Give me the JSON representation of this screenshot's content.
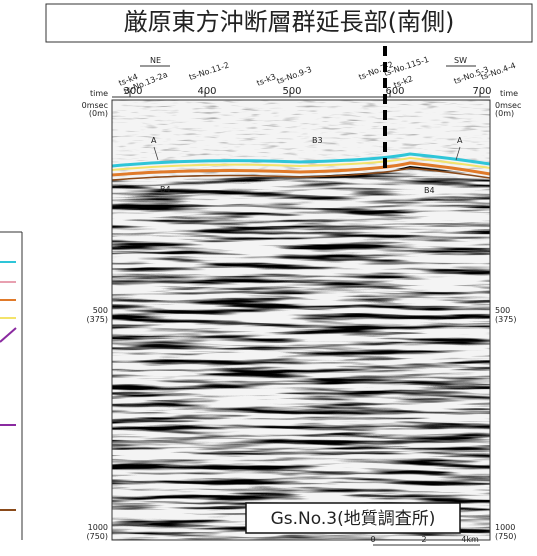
{
  "title": "厳原東方沖断層群延長部(南側)",
  "axis": {
    "time_label": "time",
    "shotpoints": [
      "300",
      "400",
      "500",
      "600",
      "700"
    ],
    "times": [
      {
        "msec": "0msec",
        "depth": "(0m)"
      },
      {
        "msec": "500",
        "depth": "(375)"
      },
      {
        "msec": "1000",
        "depth": "(750)"
      }
    ]
  },
  "directions": [
    "NE",
    "SW"
  ],
  "stations": [
    "ts-k4",
    "ts-No.13-2a",
    "ts-No.11-2",
    "ts-k3",
    "ts-No.9-3",
    "ts-No.7-2",
    "ts-No.115-1",
    "ts-k2",
    "ts-No.5-3",
    "ts-No.4-4"
  ],
  "horizons": [
    "A",
    "B3",
    "A",
    "B4",
    "B4"
  ],
  "scale": [
    "0",
    "2",
    "4km"
  ],
  "source": "Gs.No.3(地質調査所)"
}
